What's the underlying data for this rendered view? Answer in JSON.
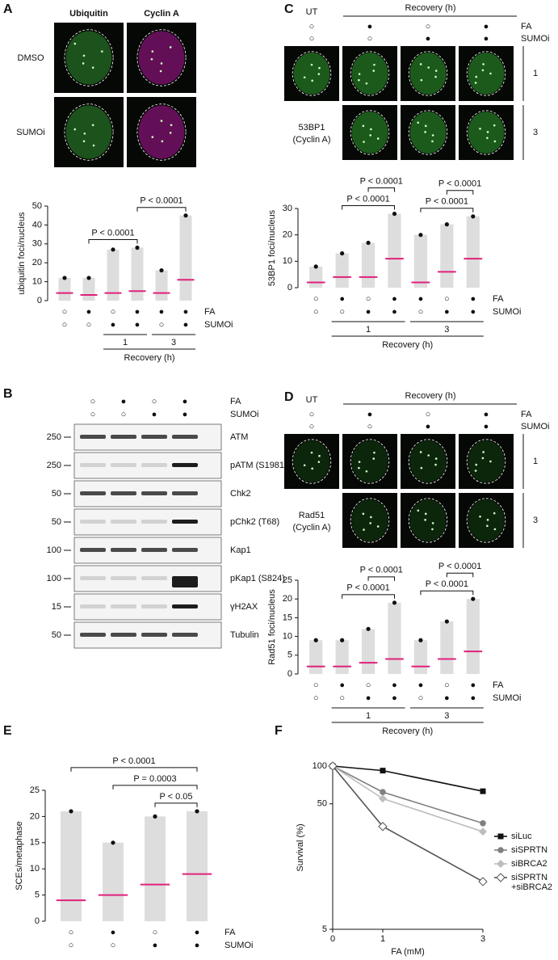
{
  "panel_a": {
    "label": "A",
    "channels": [
      "Ubiquitin",
      "Cyclin A"
    ],
    "rows": [
      "DMSO",
      "SUMOi"
    ],
    "plot": {
      "y_label": "ubiquitin foci/nucleus",
      "ylim": [
        0,
        50
      ],
      "yticks": [
        0,
        10,
        20,
        30,
        40,
        50
      ],
      "medians": [
        4,
        3,
        4,
        5,
        4,
        11
      ],
      "maxima": [
        12,
        12,
        27,
        28,
        16,
        45
      ],
      "conditions": [
        {
          "name": "FA",
          "symbols": [
            "○",
            "●",
            "○",
            "●",
            "●",
            "●"
          ]
        },
        {
          "name": "SUMOi",
          "symbols": [
            "○",
            "○",
            "●",
            "●",
            "○",
            "●"
          ]
        }
      ],
      "groups": [
        {
          "label": "1",
          "columns": [
            2,
            3
          ]
        },
        {
          "label": "3",
          "columns": [
            4,
            5
          ]
        }
      ],
      "group_title": "Recovery (h)",
      "brackets": [
        {
          "label": "P < 0.0001",
          "columns": [
            1,
            3
          ]
        },
        {
          "label": "P < 0.0001",
          "columns": [
            3,
            5
          ]
        }
      ]
    }
  },
  "panel_b": {
    "label": "B",
    "conditions": [
      {
        "name": "FA",
        "symbols": [
          "○",
          "●",
          "○",
          "●"
        ]
      },
      {
        "name": "SUMOi",
        "symbols": [
          "○",
          "○",
          "●",
          "●"
        ]
      }
    ],
    "blots": [
      {
        "name": "ATM",
        "marker": "250"
      },
      {
        "name": "pATM (S1981)",
        "marker": "250"
      },
      {
        "name": "Chk2",
        "marker": "50"
      },
      {
        "name": "pChk2 (T68)",
        "marker": "50"
      },
      {
        "name": "Kap1",
        "marker": "100"
      },
      {
        "name": "pKap1 (S824)",
        "marker": "100"
      },
      {
        "name": "γH2AX",
        "marker": "15"
      },
      {
        "name": "Tubulin",
        "marker": "50"
      }
    ]
  },
  "panel_c": {
    "label": "C",
    "untreated": "UT",
    "header": "Recovery (h)",
    "conditions": [
      {
        "name": "FA",
        "symbols": [
          "○",
          "●",
          "○",
          "●"
        ]
      },
      {
        "name": "SUMOi",
        "symbols": [
          "○",
          "○",
          "●",
          "●"
        ]
      }
    ],
    "row_labels": [
      "1",
      "3"
    ],
    "stain": [
      "53BP1",
      "(Cyclin A)"
    ],
    "plot": {
      "y_label": "53BP1 foci/nucleus",
      "ylim": [
        0,
        30
      ],
      "yticks": [
        0,
        10,
        20,
        30
      ],
      "medians": [
        2,
        4,
        4,
        11,
        2,
        6,
        11
      ],
      "maxima": [
        8,
        13,
        17,
        28,
        20,
        24,
        27
      ],
      "conditions": [
        {
          "name": "FA",
          "symbols": [
            "○",
            "●",
            "○",
            "●",
            "●",
            "○",
            "●"
          ]
        },
        {
          "name": "SUMOi",
          "symbols": [
            "○",
            "○",
            "●",
            "●",
            "○",
            "●",
            "●"
          ]
        }
      ],
      "groups": [
        {
          "label": "1",
          "columns": [
            1,
            3
          ]
        },
        {
          "label": "3",
          "columns": [
            4,
            6
          ]
        }
      ],
      "group_title": "Recovery (h)",
      "brackets": [
        {
          "label": "P < 0.0001",
          "columns": [
            1,
            3
          ]
        },
        {
          "label": "P < 0.0001",
          "columns": [
            2,
            3
          ]
        },
        {
          "label": "P < 0.0001",
          "columns": [
            4,
            6
          ]
        },
        {
          "label": "P < 0.0001",
          "columns": [
            5,
            6
          ]
        }
      ]
    }
  },
  "panel_d": {
    "label": "D",
    "untreated": "UT",
    "header": "Recovery (h)",
    "conditions": [
      {
        "name": "FA",
        "symbols": [
          "○",
          "●",
          "○",
          "●"
        ]
      },
      {
        "name": "SUMOi",
        "symbols": [
          "○",
          "○",
          "●",
          "●"
        ]
      }
    ],
    "row_labels": [
      "1",
      "3"
    ],
    "stain": [
      "Rad51",
      "(Cyclin A)"
    ],
    "plot": {
      "y_label": "Rad51 foci/nucleus",
      "ylim": [
        0,
        25
      ],
      "yticks": [
        0,
        5,
        10,
        15,
        20,
        25
      ],
      "medians": [
        2,
        2,
        3,
        4,
        2,
        4,
        6
      ],
      "maxima": [
        9,
        9,
        12,
        19,
        9,
        14,
        20
      ],
      "conditions": [
        {
          "name": "FA",
          "symbols": [
            "○",
            "●",
            "○",
            "●",
            "●",
            "○",
            "●"
          ]
        },
        {
          "name": "SUMOi",
          "symbols": [
            "○",
            "○",
            "●",
            "●",
            "○",
            "●",
            "●"
          ]
        }
      ],
      "groups": [
        {
          "label": "1",
          "columns": [
            1,
            3
          ]
        },
        {
          "label": "3",
          "columns": [
            4,
            6
          ]
        }
      ],
      "group_title": "Recovery (h)",
      "brackets": [
        {
          "label": "P < 0.0001",
          "columns": [
            1,
            3
          ]
        },
        {
          "label": "P < 0.0001",
          "columns": [
            2,
            3
          ]
        },
        {
          "label": "P < 0.0001",
          "columns": [
            4,
            6
          ]
        },
        {
          "label": "P < 0.0001",
          "columns": [
            5,
            6
          ]
        }
      ]
    }
  },
  "panel_e": {
    "label": "E",
    "plot": {
      "y_label": "SCEs/metaphase",
      "ylim": [
        0,
        25
      ],
      "yticks": [
        0,
        5,
        10,
        15,
        20,
        25
      ],
      "medians": [
        4,
        5,
        7,
        9
      ],
      "maxima": [
        21,
        15,
        20,
        21
      ],
      "conditions": [
        {
          "name": "FA",
          "symbols": [
            "○",
            "●",
            "○",
            "●"
          ]
        },
        {
          "name": "SUMOi",
          "symbols": [
            "○",
            "○",
            "●",
            "●"
          ]
        }
      ],
      "groups": [],
      "brackets": [
        {
          "label": "P < 0.05",
          "columns": [
            2,
            3
          ]
        },
        {
          "label": "P = 0.0003",
          "columns": [
            1,
            3
          ]
        },
        {
          "label": "P < 0.0001",
          "columns": [
            0,
            3
          ]
        }
      ]
    }
  },
  "panel_f": {
    "label": "F",
    "chart_data": {
      "type": "line",
      "x_label": "FA (mM)",
      "y_label": "Survival (%)",
      "log_y": true,
      "x": [
        0,
        1,
        3
      ],
      "xlim": [
        0,
        3
      ],
      "xticks": [
        0,
        1,
        3
      ],
      "ylim": [
        5,
        100
      ],
      "yticks": [
        5,
        50,
        100
      ],
      "series": [
        {
          "name": "siLuc",
          "color": "#111111",
          "values": [
            100,
            92,
            63
          ]
        },
        {
          "name": "siSPRTN",
          "color": "#808080",
          "values": [
            100,
            62,
            35
          ]
        },
        {
          "name": "siBRCA2",
          "color": "#bdbdbd",
          "values": [
            100,
            55,
            30
          ]
        },
        {
          "name": "siSPRTN +siBRCA2",
          "color": "#555555",
          "values": [
            100,
            33,
            12
          ]
        }
      ]
    }
  }
}
